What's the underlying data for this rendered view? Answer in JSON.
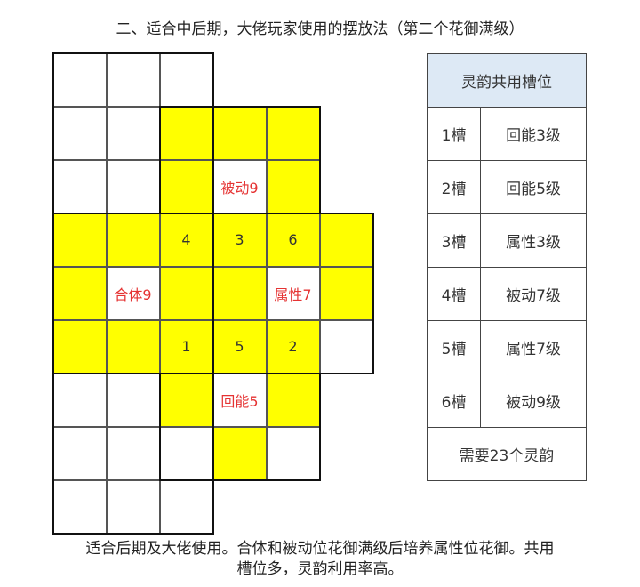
{
  "title": "二、适合中后期，大佬玩家使用的摆放法（第二个花御满级）",
  "grid": {
    "colors": {
      "yellow": "#ffff00",
      "white": "#ffffff",
      "label_red": "#e53333"
    },
    "rows": [
      [
        "w",
        "w",
        "w",
        null,
        null,
        null
      ],
      [
        "w",
        "w",
        "y",
        "y",
        "y",
        null
      ],
      [
        "w",
        "w",
        "y",
        "w",
        "y",
        null
      ],
      [
        "y",
        "y",
        "y",
        "y",
        "y",
        "y"
      ],
      [
        "y",
        "w",
        "y",
        "y",
        "w",
        "y"
      ],
      [
        "y",
        "y",
        "y",
        "y",
        "y",
        "w"
      ],
      [
        "w",
        "w",
        "y",
        "w",
        "y",
        null
      ],
      [
        "w",
        "w",
        "w",
        "y",
        "w",
        null
      ],
      [
        "w",
        "w",
        "w",
        null,
        null,
        null
      ]
    ],
    "labels": [
      {
        "row": 2,
        "col": 3,
        "text": "被动9",
        "style": "red"
      },
      {
        "row": 3,
        "col": 2,
        "text": "4",
        "style": "num"
      },
      {
        "row": 3,
        "col": 3,
        "text": "3",
        "style": "num"
      },
      {
        "row": 3,
        "col": 4,
        "text": "6",
        "style": "num"
      },
      {
        "row": 4,
        "col": 1,
        "text": "合体9",
        "style": "red"
      },
      {
        "row": 4,
        "col": 4,
        "text": "属性7",
        "style": "red"
      },
      {
        "row": 5,
        "col": 2,
        "text": "1",
        "style": "num"
      },
      {
        "row": 5,
        "col": 3,
        "text": "5",
        "style": "num"
      },
      {
        "row": 5,
        "col": 4,
        "text": "2",
        "style": "num"
      },
      {
        "row": 6,
        "col": 3,
        "text": "回能5",
        "style": "red"
      }
    ]
  },
  "table": {
    "header": "灵韵共用槽位",
    "rows": [
      {
        "slot": "1槽",
        "value": "回能3级"
      },
      {
        "slot": "2槽",
        "value": "回能5级"
      },
      {
        "slot": "3槽",
        "value": "属性3级"
      },
      {
        "slot": "4槽",
        "value": "被动7级"
      },
      {
        "slot": "5槽",
        "value": "属性7级"
      },
      {
        "slot": "6槽",
        "value": "被动9级"
      }
    ],
    "footer": "需要23个灵韵",
    "header_bg": "#dde9f5"
  },
  "note_line1": "适合后期及大佬使用。合体和被动位花御满级后培养属性位花御。共用",
  "note_line2": "槽位多，灵韵利用率高。"
}
